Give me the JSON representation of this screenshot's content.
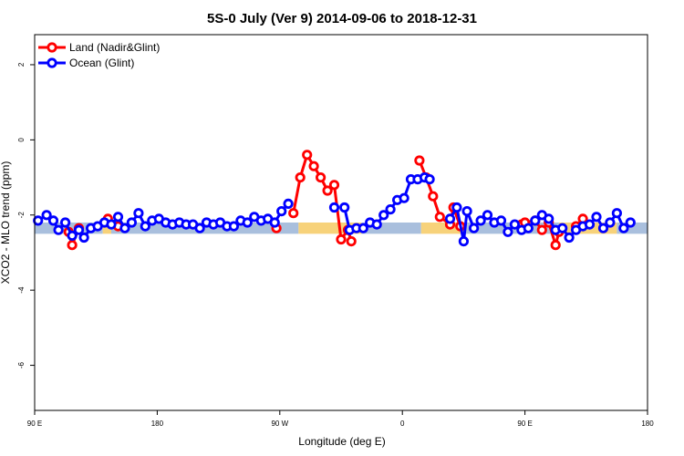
{
  "chart_data": {
    "type": "line",
    "title": "5S-0 July (Ver 9)   2014-09-06 to 2018-12-31",
    "xlabel": "Longitude (deg E)",
    "ylabel": "XCO2 - MLO trend (ppm)",
    "xlim": [
      90,
      450
    ],
    "ylim": [
      -7.2,
      2.8
    ],
    "x_ticks": [
      {
        "value": 90,
        "label": "90 E"
      },
      {
        "value": 162,
        "label": "180"
      },
      {
        "value": 234,
        "label": "90 W"
      },
      {
        "value": 306,
        "label": "0"
      },
      {
        "value": 378,
        "label": "90 E"
      },
      {
        "value": 450,
        "label": "180"
      }
    ],
    "y_ticks": [
      {
        "value": 2,
        "label": "2"
      },
      {
        "value": 0,
        "label": "0"
      },
      {
        "value": -2,
        "label": "-2"
      },
      {
        "value": -4,
        "label": "-4"
      },
      {
        "value": -6,
        "label": "-6"
      }
    ],
    "legend_position": "top-left",
    "surface_band": {
      "y_range": [
        -2.5,
        -2.2
      ],
      "segments": [
        {
          "x0": 90,
          "x1": 130,
          "type": "ocean"
        },
        {
          "x0": 130,
          "x1": 135,
          "type": "land"
        },
        {
          "x0": 135,
          "x1": 245,
          "type": "ocean"
        },
        {
          "x0": 245,
          "x1": 282,
          "type": "land"
        },
        {
          "x0": 282,
          "x1": 317,
          "type": "ocean"
        },
        {
          "x0": 317,
          "x1": 342,
          "type": "land"
        },
        {
          "x0": 342,
          "x1": 398,
          "type": "ocean"
        },
        {
          "x0": 398,
          "x1": 432,
          "type": "land"
        },
        {
          "x0": 432,
          "x1": 450,
          "type": "ocean"
        }
      ],
      "colors": {
        "land": "#f7d27a",
        "ocean": "#a9bfdd"
      }
    },
    "series": [
      {
        "name": "Land (Nadir&Glint)",
        "color": "#ff0000",
        "segments": [
          [
            [
              110,
              -2.45
            ],
            [
              112,
              -2.8
            ],
            [
              116,
              -2.35
            ]
          ],
          [
            [
              133,
              -2.1
            ],
            [
              139,
              -2.3
            ]
          ],
          [
            [
              232,
              -2.35
            ]
          ],
          [
            [
              242,
              -1.95
            ],
            [
              246,
              -1.0
            ],
            [
              250,
              -0.4
            ],
            [
              254,
              -0.7
            ],
            [
              258,
              -1.0
            ],
            [
              262,
              -1.35
            ],
            [
              266,
              -1.2
            ],
            [
              270,
              -2.65
            ],
            [
              274,
              -2.4
            ],
            [
              276,
              -2.7
            ]
          ],
          [
            [
              316,
              -0.55
            ],
            [
              320,
              -1.0
            ],
            [
              324,
              -1.5
            ],
            [
              328,
              -2.05
            ],
            [
              334,
              -2.25
            ],
            [
              336,
              -1.8
            ],
            [
              340,
              -2.3
            ]
          ],
          [
            [
              376,
              -2.25
            ],
            [
              378,
              -2.2
            ],
            [
              384,
              -2.15
            ],
            [
              388,
              -2.4
            ],
            [
              392,
              -2.2
            ],
            [
              396,
              -2.8
            ],
            [
              398,
              -2.45
            ]
          ],
          [
            [
              408,
              -2.3
            ],
            [
              412,
              -2.1
            ]
          ]
        ]
      },
      {
        "name": "Ocean (Glint)",
        "color": "#0000ff",
        "segments": [
          [
            [
              92,
              -2.15
            ],
            [
              97,
              -2.0
            ],
            [
              101,
              -2.15
            ],
            [
              104,
              -2.4
            ],
            [
              108,
              -2.2
            ],
            [
              112,
              -2.55
            ],
            [
              116,
              -2.4
            ],
            [
              119,
              -2.6
            ],
            [
              123,
              -2.35
            ],
            [
              127,
              -2.3
            ],
            [
              131,
              -2.2
            ],
            [
              135,
              -2.25
            ],
            [
              139,
              -2.05
            ],
            [
              143,
              -2.35
            ],
            [
              147,
              -2.2
            ],
            [
              151,
              -1.95
            ],
            [
              155,
              -2.3
            ],
            [
              159,
              -2.15
            ],
            [
              163,
              -2.1
            ],
            [
              167,
              -2.2
            ],
            [
              171,
              -2.25
            ],
            [
              175,
              -2.2
            ],
            [
              179,
              -2.25
            ],
            [
              183,
              -2.25
            ],
            [
              187,
              -2.35
            ],
            [
              191,
              -2.2
            ],
            [
              195,
              -2.25
            ],
            [
              199,
              -2.2
            ],
            [
              203,
              -2.3
            ],
            [
              207,
              -2.3
            ],
            [
              211,
              -2.15
            ],
            [
              215,
              -2.2
            ],
            [
              219,
              -2.05
            ],
            [
              223,
              -2.15
            ],
            [
              227,
              -2.1
            ],
            [
              231,
              -2.2
            ],
            [
              235,
              -1.9
            ],
            [
              239,
              -1.7
            ]
          ],
          [
            [
              266,
              -1.8
            ]
          ],
          [
            [
              272,
              -1.8
            ],
            [
              275,
              -2.4
            ],
            [
              279,
              -2.35
            ],
            [
              283,
              -2.35
            ],
            [
              287,
              -2.2
            ],
            [
              291,
              -2.25
            ],
            [
              295,
              -2.0
            ],
            [
              299,
              -1.85
            ],
            [
              303,
              -1.6
            ],
            [
              307,
              -1.55
            ],
            [
              311,
              -1.05
            ],
            [
              315,
              -1.05
            ],
            [
              319,
              -1.0
            ],
            [
              322,
              -1.05
            ]
          ],
          [
            [
              334,
              -2.1
            ],
            [
              338,
              -1.8
            ],
            [
              342,
              -2.7
            ],
            [
              344,
              -1.9
            ],
            [
              348,
              -2.35
            ],
            [
              352,
              -2.15
            ],
            [
              356,
              -2.0
            ],
            [
              360,
              -2.2
            ],
            [
              364,
              -2.15
            ],
            [
              368,
              -2.45
            ],
            [
              372,
              -2.25
            ],
            [
              376,
              -2.4
            ],
            [
              380,
              -2.35
            ],
            [
              384,
              -2.15
            ],
            [
              388,
              -2.0
            ],
            [
              392,
              -2.1
            ],
            [
              396,
              -2.4
            ],
            [
              400,
              -2.35
            ],
            [
              404,
              -2.6
            ],
            [
              408,
              -2.4
            ],
            [
              412,
              -2.3
            ],
            [
              416,
              -2.25
            ],
            [
              420,
              -2.05
            ],
            [
              424,
              -2.35
            ],
            [
              428,
              -2.2
            ],
            [
              432,
              -1.95
            ],
            [
              436,
              -2.35
            ],
            [
              440,
              -2.2
            ]
          ]
        ]
      }
    ]
  }
}
